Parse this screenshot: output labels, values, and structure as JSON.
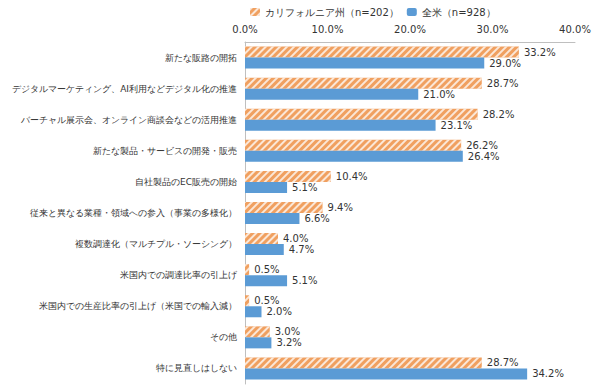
{
  "chart_data": {
    "type": "bar",
    "orientation": "horizontal",
    "categories": [
      "新たな販路の開拓",
      "デジタルマーケティング、AI利用などデジタル化の推進",
      "バーチャル展示会、オンライン商談会などの活用推進",
      "新たな製品・サービスの開発・販売",
      "自社製品のEC販売の開始",
      "従来と異なる業種・領域への参入（事業の多様化）",
      "複数調達化（マルチプル・ソーシング）",
      "米国内での調達比率の引上げ",
      "米国内での生産比率の引上げ（米国での輸入減）",
      "その他",
      "特に見直しはしない"
    ],
    "series": [
      {
        "name": "カリフォルニア州（n=202）",
        "color": "#f0a060",
        "values": [
          33.2,
          28.7,
          28.2,
          26.2,
          10.4,
          9.4,
          4.0,
          0.5,
          0.5,
          3.0,
          28.7
        ],
        "value_labels": [
          "33.2%",
          "28.7%",
          "28.2%",
          "26.2%",
          "10.4%",
          "9.4%",
          "4.0%",
          "0.5%",
          "0.5%",
          "3.0%",
          "28.7%"
        ]
      },
      {
        "name": "全米（n=928）",
        "color": "#5b9bd5",
        "values": [
          29.0,
          21.0,
          23.1,
          26.4,
          5.1,
          6.6,
          4.7,
          5.1,
          2.0,
          3.2,
          34.2
        ],
        "value_labels": [
          "29.0%",
          "21.0%",
          "23.1%",
          "26.4%",
          "5.1%",
          "6.6%",
          "4.7%",
          "5.1%",
          "2.0%",
          "3.2%",
          "34.2%"
        ]
      }
    ],
    "xlim": [
      0,
      40
    ],
    "xticks": [
      {
        "value": 0,
        "label": "0.0%"
      },
      {
        "value": 10,
        "label": "10.0%"
      },
      {
        "value": 20,
        "label": "20.0%"
      },
      {
        "value": 30,
        "label": "30.0%"
      },
      {
        "value": 40,
        "label": "40.0%"
      }
    ],
    "grid": false,
    "legend": "top",
    "data_labels": true
  }
}
